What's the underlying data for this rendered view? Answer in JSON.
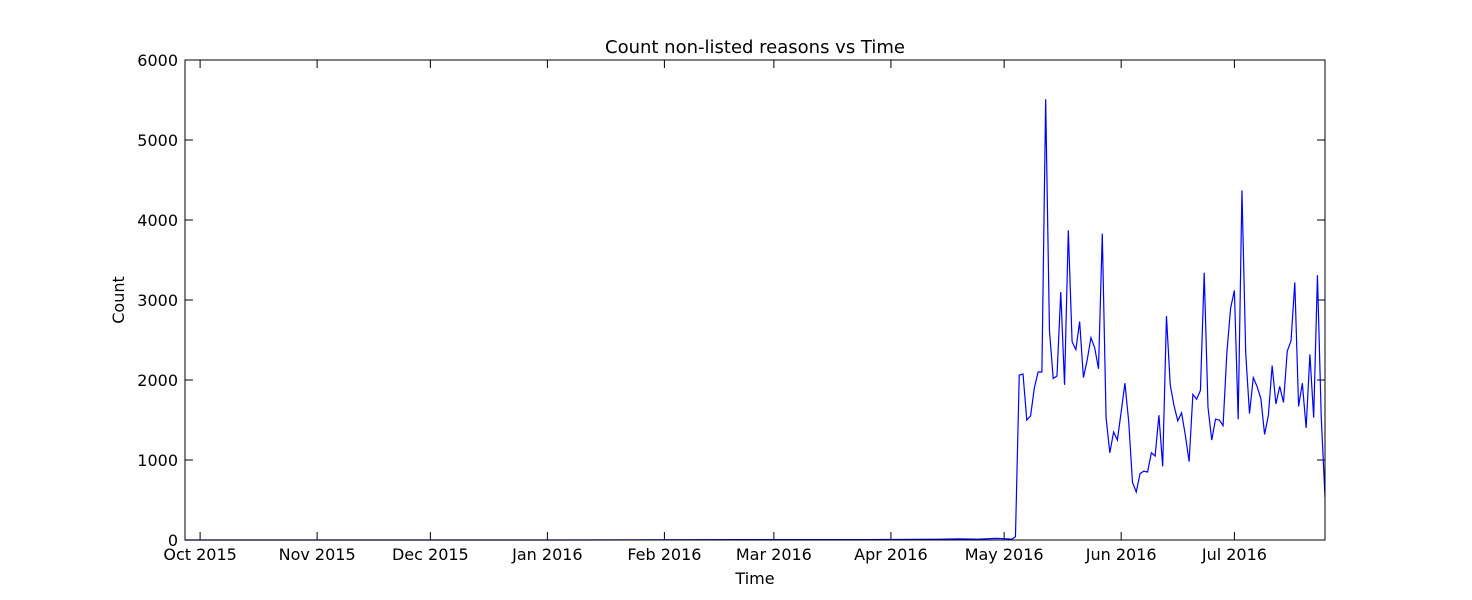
{
  "chart_data": {
    "type": "line",
    "title": "Count non-listed reasons vs Time",
    "xlabel": "Time",
    "ylabel": "Count",
    "color": "#0000ff",
    "xlim": [
      0,
      302
    ],
    "ylim": [
      0,
      6000
    ],
    "yticks": [
      0,
      1000,
      2000,
      3000,
      4000,
      5000,
      6000
    ],
    "xticks": [
      {
        "value": 4,
        "label": "Oct 2015"
      },
      {
        "value": 35,
        "label": "Nov 2015"
      },
      {
        "value": 65,
        "label": "Dec 2015"
      },
      {
        "value": 96,
        "label": "Jan 2016"
      },
      {
        "value": 127,
        "label": "Feb 2016"
      },
      {
        "value": 156,
        "label": "Mar 2016"
      },
      {
        "value": 187,
        "label": "Apr 2016"
      },
      {
        "value": 217,
        "label": "May 2016"
      },
      {
        "value": 248,
        "label": "Jun 2016"
      },
      {
        "value": 278,
        "label": "Jul 2016"
      }
    ],
    "x": [
      0,
      50,
      100,
      150,
      180,
      200,
      205,
      210,
      215,
      218,
      219,
      220,
      221,
      222,
      223,
      224,
      225,
      226,
      227,
      228,
      229,
      230,
      231,
      232,
      233,
      234,
      235,
      236,
      237,
      238,
      239,
      240,
      241,
      242,
      243,
      244,
      245,
      246,
      247,
      248,
      249,
      250,
      251,
      252,
      253,
      254,
      255,
      256,
      257,
      258,
      259,
      260,
      261,
      262,
      263,
      264,
      265,
      266,
      267,
      268,
      269,
      270,
      271,
      272,
      273,
      274,
      275,
      276,
      277,
      278,
      279,
      280,
      281,
      282,
      283,
      284,
      285,
      286,
      287,
      288,
      289,
      290,
      291,
      292,
      293,
      294,
      295,
      296,
      297,
      298,
      299,
      300,
      301,
      302
    ],
    "values": [
      0,
      0,
      0,
      5,
      5,
      10,
      15,
      10,
      20,
      15,
      10,
      40,
      2060,
      2075,
      1500,
      1550,
      1900,
      2100,
      2100,
      5510,
      2620,
      2020,
      2050,
      3100,
      1940,
      3870,
      2480,
      2380,
      2730,
      2030,
      2250,
      2530,
      2400,
      2140,
      3830,
      1530,
      1090,
      1350,
      1250,
      1600,
      1960,
      1480,
      720,
      600,
      830,
      860,
      850,
      1090,
      1050,
      1560,
      920,
      2800,
      1940,
      1680,
      1490,
      1590,
      1310,
      980,
      1820,
      1760,
      1870,
      3340,
      1660,
      1250,
      1510,
      1500,
      1430,
      2340,
      2900,
      3120,
      1510,
      4370,
      2330,
      1580,
      2030,
      1920,
      1770,
      1320,
      1560,
      2180,
      1700,
      1920,
      1720,
      2360,
      2490,
      3220,
      1670,
      1960,
      1400,
      2320,
      1530,
      3310,
      1540,
      540
    ]
  }
}
